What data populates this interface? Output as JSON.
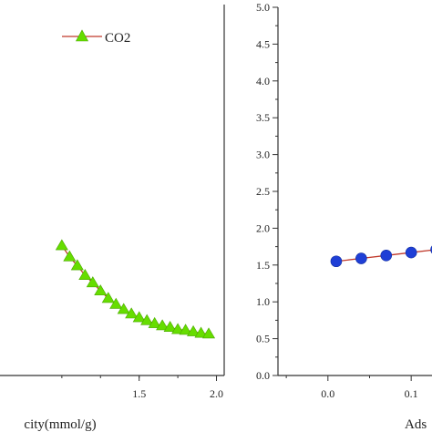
{
  "chart_data": [
    {
      "type": "line",
      "panel": "left",
      "xlabel": "city(mmol/g)",
      "x_ticks": [
        1.5,
        2.0
      ],
      "xlim": [
        0.6,
        2.05
      ],
      "ylim": [
        0,
        5.0
      ],
      "legend": {
        "placement": "top-center",
        "entries": [
          "CO2"
        ]
      },
      "series": [
        {
          "name": "CO2",
          "line_color": "#c0392b",
          "marker": "triangle",
          "marker_color": "#66dd00",
          "x": [
            1.0,
            1.05,
            1.1,
            1.15,
            1.2,
            1.25,
            1.3,
            1.35,
            1.4,
            1.45,
            1.5,
            1.55,
            1.6,
            1.65,
            1.7,
            1.75,
            1.8,
            1.85,
            1.9,
            1.95
          ],
          "y": [
            1.75,
            1.6,
            1.48,
            1.35,
            1.25,
            1.14,
            1.04,
            0.96,
            0.89,
            0.83,
            0.78,
            0.74,
            0.7,
            0.67,
            0.65,
            0.62,
            0.61,
            0.59,
            0.57,
            0.56
          ]
        }
      ]
    },
    {
      "type": "line",
      "panel": "right",
      "xlabel": "Ads",
      "x_ticks": [
        0.0,
        0.1
      ],
      "y_ticks": [
        0.0,
        0.5,
        1.0,
        1.5,
        2.0,
        2.5,
        3.0,
        3.5,
        4.0,
        4.5,
        5.0
      ],
      "y_tick_labels": [
        "0.0",
        "0.5",
        "1.0",
        "1.5",
        "2.0",
        "2.5",
        "3.0",
        "3.5",
        "4.0",
        "4.5",
        "5.0"
      ],
      "xlim": [
        -0.06,
        0.125
      ],
      "ylim": [
        0,
        5.0
      ],
      "series": [
        {
          "line_color": "#c0392b",
          "marker": "circle",
          "marker_color": "#1f3fd6",
          "x": [
            0.01,
            0.04,
            0.07,
            0.1,
            0.13
          ],
          "y": [
            1.55,
            1.59,
            1.63,
            1.67,
            1.71
          ]
        }
      ]
    }
  ]
}
